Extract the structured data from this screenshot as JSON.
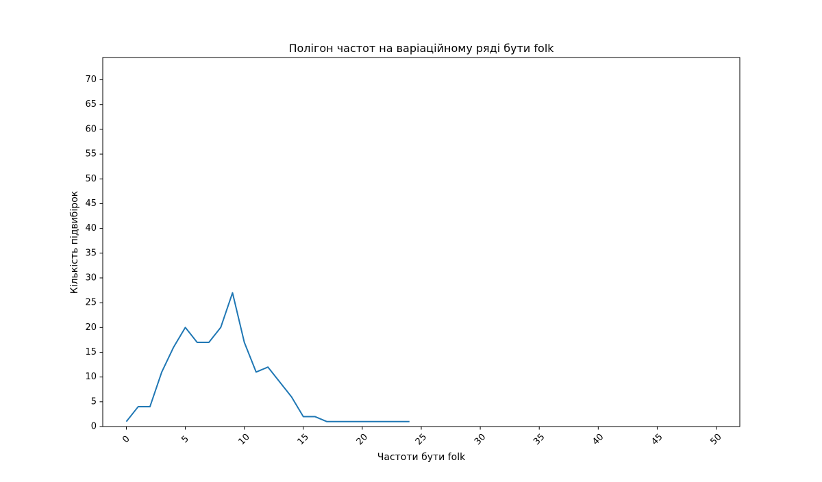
{
  "chart_data": {
    "type": "line",
    "title": "Полігон частот на варіаційному ряді бути folk",
    "xlabel": "Частоти бути folk",
    "ylabel": "Кількість підвибірок",
    "xlim": [
      -2,
      52
    ],
    "ylim": [
      0,
      74.5
    ],
    "xticks": [
      0,
      5,
      10,
      15,
      20,
      25,
      30,
      35,
      40,
      45,
      50
    ],
    "xtick_labels": [
      "0",
      "5",
      "10",
      "15",
      "20",
      "25",
      "30",
      "35",
      "40",
      "45",
      "50"
    ],
    "xtick_rotation": -45,
    "yticks": [
      0,
      5,
      10,
      15,
      20,
      25,
      30,
      35,
      40,
      45,
      50,
      55,
      60,
      65,
      70
    ],
    "ytick_labels": [
      "0",
      "5",
      "10",
      "15",
      "20",
      "25",
      "30",
      "35",
      "40",
      "45",
      "50",
      "55",
      "60",
      "65",
      "70"
    ],
    "grid": false,
    "series": [
      {
        "color": "#1f77b4",
        "x": [
          0,
          1,
          2,
          3,
          4,
          5,
          6,
          7,
          8,
          9,
          10,
          11,
          12,
          13,
          14,
          15,
          16,
          17,
          18,
          19,
          20,
          21,
          22,
          23,
          24
        ],
        "y": [
          1,
          4,
          4,
          11,
          16,
          20,
          17,
          17,
          20,
          27,
          17,
          11,
          12,
          9,
          6,
          2,
          2,
          1,
          1,
          1,
          1,
          1,
          1,
          1,
          1
        ]
      }
    ]
  }
}
